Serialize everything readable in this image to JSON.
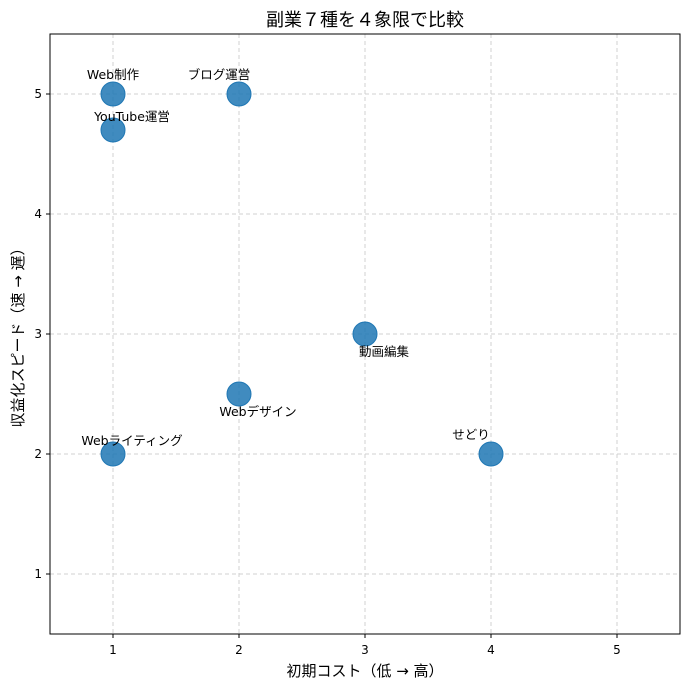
{
  "chart_data": {
    "type": "scatter",
    "title": "副業７種を４象限で比較",
    "xlabel": "初期コスト（低 → 高）",
    "ylabel": "収益化スピード（速 → 遅）",
    "xlim": [
      0.5,
      5.5
    ],
    "ylim": [
      0.5,
      5.5
    ],
    "xticks": [
      1,
      2,
      3,
      4,
      5
    ],
    "yticks": [
      1,
      2,
      3,
      4,
      5
    ],
    "grid": true,
    "point_color": "#1f77b4",
    "points": [
      {
        "label": "Web制作",
        "x": 1,
        "y": 5,
        "label_pos": "above"
      },
      {
        "label": "ブログ運営",
        "x": 2,
        "y": 5,
        "label_pos": "above-left"
      },
      {
        "label": "YouTube運営",
        "x": 1,
        "y": 4.7,
        "label_pos": "above-right"
      },
      {
        "label": "動画編集",
        "x": 3,
        "y": 3,
        "label_pos": "below-right"
      },
      {
        "label": "Webデザイン",
        "x": 2,
        "y": 2.5,
        "label_pos": "below-right"
      },
      {
        "label": "Webライティング",
        "x": 1,
        "y": 2,
        "label_pos": "above-right"
      },
      {
        "label": "せどり",
        "x": 4,
        "y": 2,
        "label_pos": "above-left"
      }
    ]
  }
}
